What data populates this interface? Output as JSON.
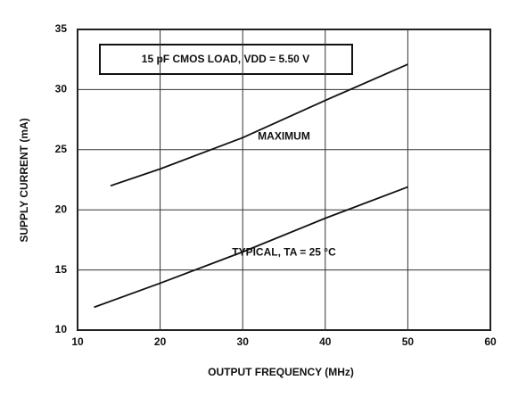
{
  "chart_data": {
    "type": "line",
    "annotation": "15 pF CMOS LOAD, VDD = 5.50 V",
    "x_label": "OUTPUT FREQUENCY (MHz)",
    "y_label": "SUPPLY CURRENT (mA)",
    "xlim": [
      10,
      60
    ],
    "ylim": [
      10,
      35
    ],
    "xticks": [
      10,
      20,
      30,
      40,
      50,
      60
    ],
    "yticks": [
      10,
      15,
      20,
      25,
      30,
      35
    ],
    "grid": true,
    "series": [
      {
        "name": "MAXIMUM",
        "color": "#111111",
        "x": [
          14,
          20,
          30,
          40,
          50
        ],
        "values": [
          22,
          23.4,
          26,
          29.1,
          32.1
        ]
      },
      {
        "name": "TYPICAL, TA = 25 °C",
        "color": "#111111",
        "x": [
          12,
          20,
          30,
          40,
          50
        ],
        "values": [
          11.9,
          13.9,
          16.5,
          19.3,
          21.9
        ]
      }
    ]
  }
}
